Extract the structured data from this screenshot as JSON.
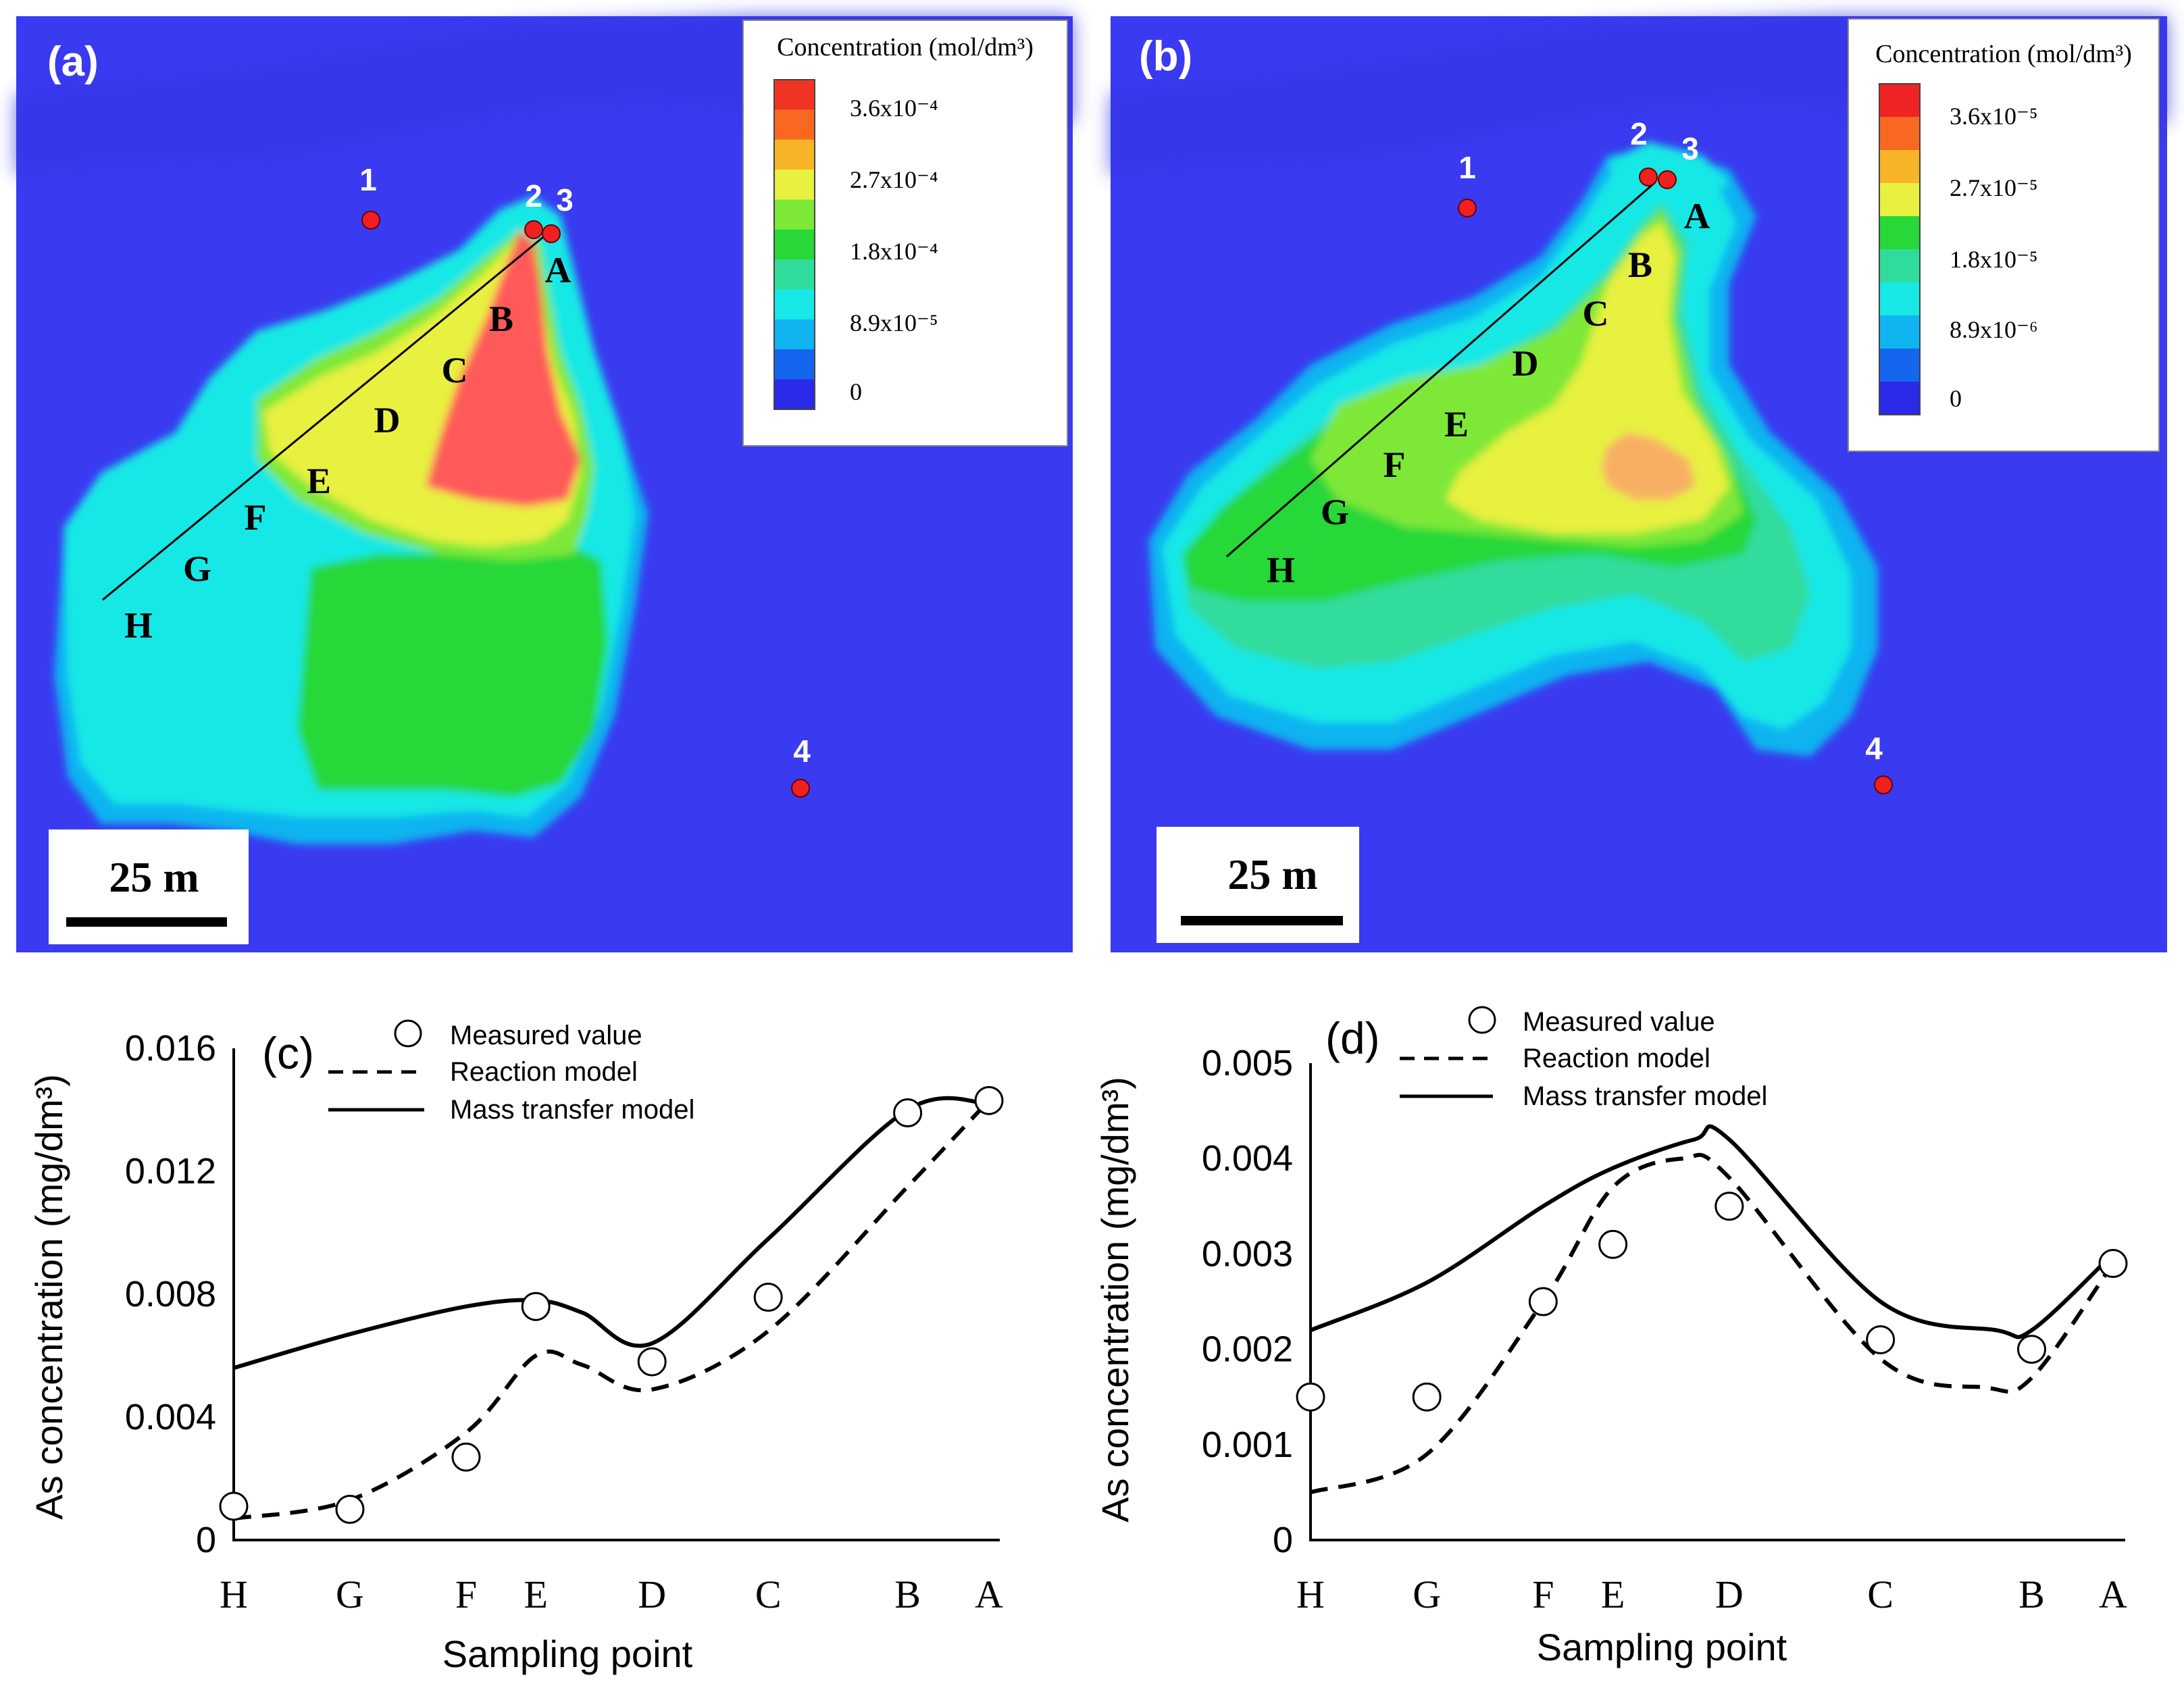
{
  "colors": {
    "background": "#3a3af0",
    "map_levels": [
      "#2a2ae8",
      "#1466ee",
      "#10b4f0",
      "#18e8e6",
      "#30dc9c",
      "#28d838",
      "#7ee838",
      "#e8f040",
      "#f8b428",
      "#f86820",
      "#f03424"
    ],
    "plume_red": "#ff5a5a",
    "plume_orange_b": "#f7b064",
    "point_red": "#f02020",
    "legend_b_scale": [
      "#f02424",
      "#f86820",
      "#f8b428",
      "#e8f040",
      "#28d838",
      "#30dc9c",
      "#18e8e6",
      "#10b4f0",
      "#1466ee",
      "#2a2ae8"
    ]
  },
  "maps": [
    {
      "panel_label": "(a)",
      "legend": {
        "title": "Concentration (mol/dm³)",
        "ticks": [
          "3.6x10⁻⁴",
          "2.7x10⁻⁴",
          "1.8x10⁻⁴",
          "8.9x10⁻⁵",
          "0"
        ]
      },
      "scale_bar": "25 m",
      "wells": [
        "1",
        "2",
        "3",
        "4"
      ],
      "transect_points": [
        "A",
        "B",
        "C",
        "D",
        "E",
        "F",
        "G",
        "H"
      ]
    },
    {
      "panel_label": "(b)",
      "legend": {
        "title": "Concentration (mol/dm³)",
        "ticks": [
          "3.6x10⁻⁵",
          "2.7x10⁻⁵",
          "1.8x10⁻⁵",
          "8.9x10⁻⁶",
          "0"
        ]
      },
      "scale_bar": "25 m",
      "wells": [
        "1",
        "2",
        "3",
        "4"
      ],
      "transect_points": [
        "A",
        "B",
        "C",
        "D",
        "E",
        "F",
        "G",
        "H"
      ]
    }
  ],
  "chart_data": [
    {
      "type": "line",
      "panel_label": "(c)",
      "xlabel": "Sampling point",
      "ylabel": "As concentration (mg/dm³)",
      "categories": [
        "H",
        "G",
        "F",
        "E",
        "D",
        "C",
        "B",
        "A"
      ],
      "category_positions": [
        0,
        1,
        2,
        2.6,
        3.6,
        4.6,
        5.8,
        6.5
      ],
      "ylim": [
        0,
        0.016
      ],
      "yticks": [
        "0",
        "0.004",
        "0.008",
        "0.012",
        "0.016"
      ],
      "ytick_values": [
        0,
        0.004,
        0.008,
        0.012,
        0.016
      ],
      "legend": [
        "Measured value",
        "Reaction model",
        "Mass transfer model"
      ],
      "series": [
        {
          "name": "Measured value",
          "style": "markers",
          "x": [
            0,
            1,
            2,
            2.6,
            3.6,
            4.6,
            5.8,
            6.5
          ],
          "values": [
            0.0011,
            0.001,
            0.0027,
            0.0076,
            0.0058,
            0.0079,
            0.0139,
            0.0143
          ]
        },
        {
          "name": "Reaction model",
          "style": "dashed",
          "x": [
            0,
            1,
            2,
            2.6,
            3.0,
            3.6,
            4.6,
            5.8,
            6.5
          ],
          "values": [
            0.0007,
            0.0013,
            0.0035,
            0.006,
            0.0057,
            0.0049,
            0.0068,
            0.0115,
            0.0143
          ]
        },
        {
          "name": "Mass transfer model",
          "style": "solid",
          "x": [
            0,
            1,
            2,
            2.6,
            3.0,
            3.6,
            4.6,
            5.8,
            6.5
          ],
          "values": [
            0.0056,
            0.0067,
            0.0076,
            0.0078,
            0.0074,
            0.0064,
            0.0098,
            0.014,
            0.0142
          ]
        }
      ]
    },
    {
      "type": "line",
      "panel_label": "(d)",
      "xlabel": "Sampling point",
      "ylabel": "As concentration (mg/dm³)",
      "categories": [
        "H",
        "G",
        "F",
        "E",
        "D",
        "C",
        "B",
        "A"
      ],
      "category_positions": [
        0,
        1,
        2,
        2.6,
        3.6,
        4.9,
        6.2,
        6.9
      ],
      "ylim": [
        0,
        0.005
      ],
      "yticks": [
        "0",
        "0.001",
        "0.002",
        "0.003",
        "0.004",
        "0.005"
      ],
      "ytick_values": [
        0,
        0.001,
        0.002,
        0.003,
        0.004,
        0.005
      ],
      "legend": [
        "Measured value",
        "Reaction model",
        "Mass transfer model"
      ],
      "series": [
        {
          "name": "Measured value",
          "style": "markers",
          "x": [
            0,
            1,
            2,
            2.6,
            3.6,
            4.9,
            6.2,
            6.9
          ],
          "values": [
            0.0015,
            0.0015,
            0.0025,
            0.0031,
            0.0035,
            0.0021,
            0.002,
            0.0029
          ]
        },
        {
          "name": "Reaction model",
          "style": "dashed",
          "x": [
            0,
            1,
            2,
            2.6,
            3.2,
            3.6,
            4.9,
            5.8,
            6.2,
            6.9
          ],
          "values": [
            0.0005,
            0.0009,
            0.0025,
            0.0037,
            0.004,
            0.0038,
            0.0019,
            0.0016,
            0.0017,
            0.0029
          ]
        },
        {
          "name": "Mass transfer model",
          "style": "solid",
          "x": [
            0,
            1,
            2,
            2.6,
            3.3,
            3.6,
            4.9,
            5.9,
            6.2,
            6.9
          ],
          "values": [
            0.0022,
            0.0027,
            0.0035,
            0.0039,
            0.0042,
            0.0042,
            0.0025,
            0.0022,
            0.0022,
            0.003
          ]
        }
      ]
    }
  ]
}
